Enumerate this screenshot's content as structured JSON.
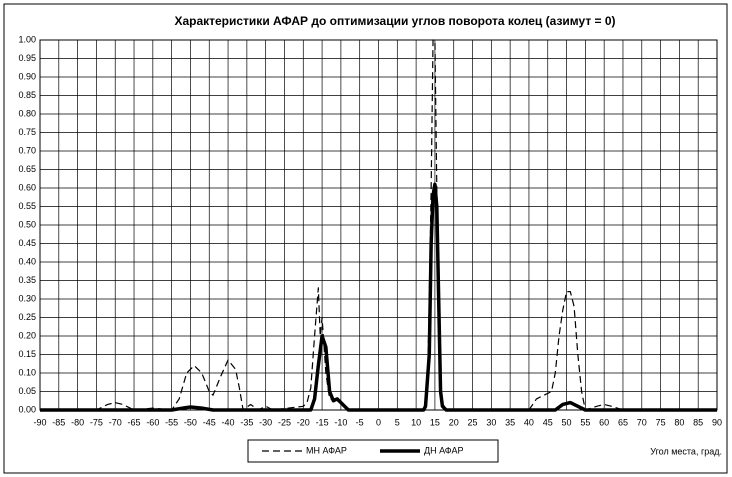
{
  "chart_data": {
    "type": "line",
    "title": "Характеристики АФАР до оптимизации углов поворота колец (азимут = 0)",
    "x_label": "Угол места, град.",
    "xlim": [
      -90,
      90
    ],
    "xticks": [
      -90,
      -85,
      -80,
      -75,
      -70,
      -65,
      -60,
      -55,
      -50,
      -45,
      -40,
      -35,
      -30,
      -25,
      -20,
      -15,
      -10,
      -5,
      0,
      5,
      10,
      15,
      20,
      25,
      30,
      35,
      40,
      45,
      50,
      55,
      60,
      65,
      70,
      75,
      80,
      85,
      90
    ],
    "ylim": [
      0,
      1
    ],
    "yticks": [
      {
        "value": 0,
        "label": "0.00"
      },
      {
        "value": 0.05,
        "label": "0.05"
      },
      {
        "value": 0.1,
        "label": "0.10"
      },
      {
        "value": 0.15,
        "label": "0.15"
      },
      {
        "value": 0.2,
        "label": "0.20"
      },
      {
        "value": 0.25,
        "label": "0.25"
      },
      {
        "value": 0.3,
        "label": "0.30"
      },
      {
        "value": 0.35,
        "label": "0.35"
      },
      {
        "value": 0.4,
        "label": "0.40"
      },
      {
        "value": 0.45,
        "label": "0.45"
      },
      {
        "value": 0.5,
        "label": "0.50"
      },
      {
        "value": 0.55,
        "label": "0.55"
      },
      {
        "value": 0.6,
        "label": "0.60"
      },
      {
        "value": 0.65,
        "label": "0.65"
      },
      {
        "value": 0.7,
        "label": "0.70"
      },
      {
        "value": 0.75,
        "label": "0.75"
      },
      {
        "value": 0.8,
        "label": "0.80"
      },
      {
        "value": 0.85,
        "label": "0.85"
      },
      {
        "value": 0.9,
        "label": "0.90"
      },
      {
        "value": 0.95,
        "label": "0.95"
      },
      {
        "value": 1,
        "label": "1.00"
      }
    ],
    "grid": true,
    "series": [
      {
        "name": "МН АФАР",
        "color": "#000000",
        "dash": true,
        "width": 1.2,
        "x": [
          -90,
          -75,
          -72,
          -70,
          -68,
          -65,
          -60,
          -55,
          -53,
          -51,
          -49,
          -47,
          -45,
          -44,
          -42,
          -40,
          -38,
          -37,
          -36,
          -34,
          -32,
          -30,
          -28,
          -20,
          -19,
          -18,
          -17,
          -16,
          -15.5,
          -15,
          -14,
          -13,
          -11,
          -10,
          -8,
          12,
          13,
          13.5,
          14,
          14.5,
          15,
          15.5,
          16,
          16.5,
          17,
          18,
          40,
          42,
          44,
          46,
          47,
          48,
          49,
          50,
          51,
          52,
          53,
          54,
          55,
          58,
          60,
          62,
          65,
          90
        ],
        "values": [
          0,
          0,
          0.015,
          0.02,
          0.015,
          0,
          0.005,
          0,
          0.03,
          0.1,
          0.12,
          0.1,
          0.05,
          0.04,
          0.09,
          0.135,
          0.11,
          0.06,
          0,
          0.015,
          0,
          0.01,
          0,
          0.01,
          0.02,
          0.06,
          0.2,
          0.33,
          0.2,
          0.25,
          0.1,
          0.03,
          0.03,
          0.02,
          0,
          0,
          0.05,
          0.3,
          0.6,
          1,
          1,
          0.6,
          0.3,
          0.05,
          0.02,
          0,
          0,
          0.03,
          0.04,
          0.05,
          0.1,
          0.2,
          0.27,
          0.32,
          0.32,
          0.28,
          0.15,
          0.05,
          0,
          0.01,
          0.015,
          0.01,
          0,
          0
        ]
      },
      {
        "name": "ДН АФАР",
        "color": "#000000",
        "dash": false,
        "width": 3.5,
        "x": [
          -90,
          -55,
          -52,
          -50,
          -47,
          -44,
          -18,
          -17,
          -16,
          -15,
          -14,
          -13,
          -12,
          -11,
          -10,
          -8,
          12,
          12.5,
          13.5,
          14,
          14.5,
          15,
          15.5,
          16,
          16.5,
          17,
          18,
          47,
          49,
          51,
          53,
          55,
          90
        ],
        "values": [
          0,
          0,
          0.005,
          0.008,
          0.005,
          0,
          0,
          0.03,
          0.12,
          0.2,
          0.17,
          0.05,
          0.025,
          0.03,
          0.02,
          0,
          0,
          0.01,
          0.15,
          0.45,
          0.58,
          0.61,
          0.55,
          0.3,
          0.05,
          0.01,
          0,
          0,
          0.015,
          0.02,
          0.01,
          0,
          0
        ]
      }
    ]
  }
}
